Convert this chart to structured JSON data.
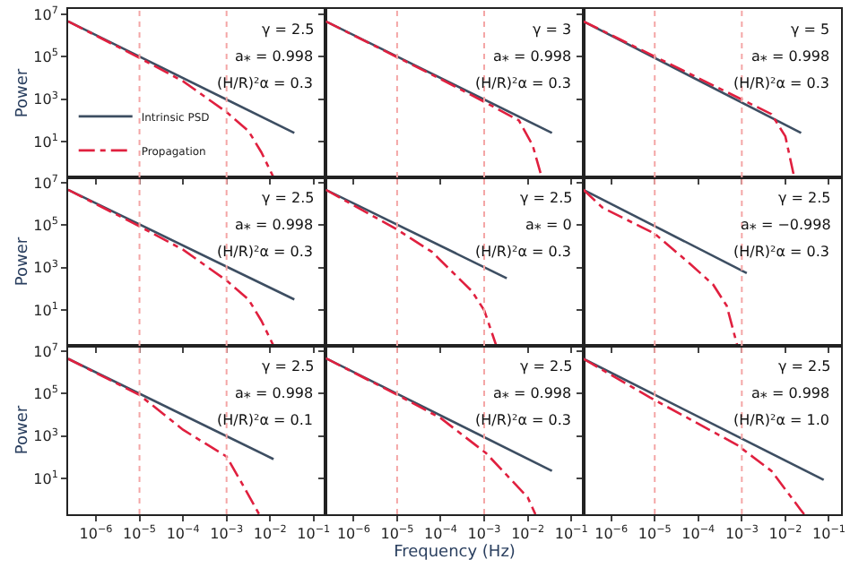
{
  "chart_data": [
    {
      "type": "line",
      "ylabel": "Power",
      "log": "xy",
      "tick_labels": "y",
      "legend": "bottom left",
      "xlim": [
        2.3e-07,
        0.19
      ],
      "ylim": [
        0.21,
        18000000.0
      ],
      "xticks": [
        {
          "value": 1e-06,
          "label": "10$^{−6}$"
        },
        {
          "value": 1e-05,
          "label": "10$^{−5}$"
        },
        {
          "value": 0.0001,
          "label": "10$^{−4}$"
        },
        {
          "value": 0.001,
          "label": "10$^{−3}$"
        },
        {
          "value": 0.01,
          "label": "10$^{−2}$"
        },
        {
          "value": 0.1,
          "label": "10$^{−1}$"
        }
      ],
      "yticks": [
        {
          "value": 10,
          "label": "10$^{1}$"
        },
        {
          "value": 1000,
          "label": "10$^{3}$"
        },
        {
          "value": 100000,
          "label": "10$^{5}$"
        },
        {
          "value": 10000000,
          "label": "10$^{7}$"
        }
      ],
      "ref_lines": [
        {
          "axis": "x",
          "value": 1e-05,
          "color": "#f4a6a6",
          "line_style": "dotted"
        },
        {
          "axis": "x",
          "value": 0.001,
          "color": "#f4a6a6",
          "line_style": "dotted"
        }
      ],
      "annotations": [
        "γ = 2.5",
        "a⁎ = 0.998",
        "(H/R)²α = 0.3"
      ],
      "series": [
        {
          "name": "Intrinsic PSD",
          "color": "#3d4e62",
          "line_style": "solid",
          "x": [
            2.3e-07,
            0.036
          ],
          "values": [
            4700000.0,
            26
          ]
        },
        {
          "name": "Propagation",
          "color": "#e0203f",
          "line_style": "dashdot",
          "x": [
            2.3e-07,
            1e-05,
            0.0001,
            0.001,
            0.0032,
            0.0063,
            0.012
          ],
          "values": [
            4700000.0,
            89000.0,
            7100.0,
            250,
            32,
            3.2,
            0.21
          ]
        }
      ]
    },
    {
      "type": "line",
      "log": "xy",
      "tick_labels": false,
      "xlim": [
        2.3e-07,
        0.19
      ],
      "ylim": [
        0.21,
        18000000.0
      ],
      "xticks": [
        {
          "value": 1e-06,
          "label": "10$^{−6}$"
        },
        {
          "value": 1e-05,
          "label": "10$^{−5}$"
        },
        {
          "value": 0.0001,
          "label": "10$^{−4}$"
        },
        {
          "value": 0.001,
          "label": "10$^{−3}$"
        },
        {
          "value": 0.01,
          "label": "10$^{−2}$"
        },
        {
          "value": 0.1,
          "label": "10$^{−1}$"
        }
      ],
      "yticks": [
        {
          "value": 10,
          "label": "10$^{1}$"
        },
        {
          "value": 1000,
          "label": "10$^{3}$"
        },
        {
          "value": 100000,
          "label": "10$^{5}$"
        },
        {
          "value": 10000000,
          "label": "10$^{7}$"
        }
      ],
      "ref_lines": [
        {
          "axis": "x",
          "value": 1e-05,
          "color": "#f4a6a6",
          "line_style": "dotted"
        },
        {
          "axis": "x",
          "value": 0.001,
          "color": "#f4a6a6",
          "line_style": "dotted"
        }
      ],
      "annotations": [
        "γ = 3",
        "a⁎ = 0.998",
        "(H/R)²α = 0.3"
      ],
      "series": [
        {
          "color": "#3d4e62",
          "line_style": "solid",
          "x": [
            2.3e-07,
            0.036
          ],
          "values": [
            4700000.0,
            26
          ]
        },
        {
          "color": "#e0203f",
          "line_style": "dashdot",
          "x": [
            2.3e-07,
            0.0001,
            0.0012,
            0.0063,
            0.013,
            0.021
          ],
          "values": [
            4700000.0,
            9000,
            630,
            100,
            6.8,
            0.21
          ]
        }
      ]
    },
    {
      "type": "line",
      "log": "xy",
      "tick_labels": false,
      "xlim": [
        2.3e-07,
        0.19
      ],
      "ylim": [
        0.21,
        18000000.0
      ],
      "xticks": [
        {
          "value": 1e-06,
          "label": "10$^{−6}$"
        },
        {
          "value": 1e-05,
          "label": "10$^{−5}$"
        },
        {
          "value": 0.0001,
          "label": "10$^{−4}$"
        },
        {
          "value": 0.001,
          "label": "10$^{−3}$"
        },
        {
          "value": 0.01,
          "label": "10$^{−2}$"
        },
        {
          "value": 0.1,
          "label": "10$^{−1}$"
        }
      ],
      "yticks": [
        {
          "value": 10,
          "label": "10$^{1}$"
        },
        {
          "value": 1000,
          "label": "10$^{3}$"
        },
        {
          "value": 100000,
          "label": "10$^{5}$"
        },
        {
          "value": 10000000,
          "label": "10$^{7}$"
        }
      ],
      "ref_lines": [
        {
          "axis": "x",
          "value": 1e-05,
          "color": "#f4a6a6",
          "line_style": "dotted"
        },
        {
          "axis": "x",
          "value": 0.001,
          "color": "#f4a6a6",
          "line_style": "dotted"
        }
      ],
      "annotations": [
        "γ = 5",
        "a⁎ = 0.998",
        "(H/R)²α = 0.3"
      ],
      "series": [
        {
          "color": "#3d4e62",
          "line_style": "solid",
          "x": [
            2.3e-07,
            0.023
          ],
          "values": [
            4700000.0,
            26
          ]
        },
        {
          "color": "#e0203f",
          "line_style": "dashdot",
          "x": [
            2.3e-07,
            0.0048,
            0.01,
            0.016
          ],
          "values": [
            4700000.0,
            200,
            18,
            0.21
          ]
        }
      ]
    },
    {
      "type": "line",
      "ylabel": "Power",
      "log": "xy",
      "tick_labels": "y",
      "xlim": [
        2.3e-07,
        0.19
      ],
      "ylim": [
        0.21,
        18000000.0
      ],
      "xticks": [
        {
          "value": 1e-06,
          "label": "10$^{−6}$"
        },
        {
          "value": 1e-05,
          "label": "10$^{−5}$"
        },
        {
          "value": 0.0001,
          "label": "10$^{−4}$"
        },
        {
          "value": 0.001,
          "label": "10$^{−3}$"
        },
        {
          "value": 0.01,
          "label": "10$^{−2}$"
        },
        {
          "value": 0.1,
          "label": "10$^{−1}$"
        }
      ],
      "yticks": [
        {
          "value": 10,
          "label": "10$^{1}$"
        },
        {
          "value": 1000,
          "label": "10$^{3}$"
        },
        {
          "value": 100000,
          "label": "10$^{5}$"
        },
        {
          "value": 10000000,
          "label": "10$^{7}$"
        }
      ],
      "ref_lines": [
        {
          "axis": "x",
          "value": 1e-05,
          "color": "#f4a6a6",
          "line_style": "dotted"
        },
        {
          "axis": "x",
          "value": 0.001,
          "color": "#f4a6a6",
          "line_style": "dotted"
        }
      ],
      "annotations": [
        "γ = 2.5",
        "a⁎ = 0.998",
        "(H/R)²α = 0.3"
      ],
      "series": [
        {
          "color": "#3d4e62",
          "line_style": "solid",
          "x": [
            2.3e-07,
            0.036
          ],
          "values": [
            4700000.0,
            32
          ]
        },
        {
          "color": "#e0203f",
          "line_style": "dashdot",
          "x": [
            2.3e-07,
            1e-05,
            0.0001,
            0.001,
            0.0032,
            0.0063,
            0.012
          ],
          "values": [
            4700000.0,
            89000.0,
            7100.0,
            250,
            32,
            3.2,
            0.21
          ]
        }
      ]
    },
    {
      "type": "line",
      "log": "xy",
      "tick_labels": false,
      "xlim": [
        2.3e-07,
        0.19
      ],
      "ylim": [
        0.21,
        18000000.0
      ],
      "xticks": [
        {
          "value": 1e-06,
          "label": "10$^{−6}$"
        },
        {
          "value": 1e-05,
          "label": "10$^{−5}$"
        },
        {
          "value": 0.0001,
          "label": "10$^{−4}$"
        },
        {
          "value": 0.001,
          "label": "10$^{−3}$"
        },
        {
          "value": 0.01,
          "label": "10$^{−2}$"
        },
        {
          "value": 0.1,
          "label": "10$^{−1}$"
        }
      ],
      "yticks": [
        {
          "value": 10,
          "label": "10$^{1}$"
        },
        {
          "value": 1000,
          "label": "10$^{3}$"
        },
        {
          "value": 100000,
          "label": "10$^{5}$"
        },
        {
          "value": 10000000,
          "label": "10$^{7}$"
        }
      ],
      "ref_lines": [
        {
          "axis": "x",
          "value": 1e-05,
          "color": "#f4a6a6",
          "line_style": "dotted"
        },
        {
          "axis": "x",
          "value": 0.001,
          "color": "#f4a6a6",
          "line_style": "dotted"
        }
      ],
      "annotations": [
        "γ = 2.5",
        "a⁎ = 0",
        "(H/R)²α = 0.3"
      ],
      "series": [
        {
          "color": "#3d4e62",
          "line_style": "solid",
          "x": [
            2.3e-07,
            0.0033
          ],
          "values": [
            4700000.0,
            320
          ]
        },
        {
          "color": "#e0203f",
          "line_style": "dashdot",
          "x": [
            2.3e-07,
            1e-05,
            6.3e-05,
            0.00052,
            0.001,
            0.0019
          ],
          "values": [
            4700000.0,
            63000.0,
            5600,
            79,
            10,
            0.21
          ]
        }
      ]
    },
    {
      "type": "line",
      "log": "xy",
      "tick_labels": false,
      "xlim": [
        2.3e-07,
        0.19
      ],
      "ylim": [
        0.21,
        18000000.0
      ],
      "xticks": [
        {
          "value": 1e-06,
          "label": "10$^{−6}$"
        },
        {
          "value": 1e-05,
          "label": "10$^{−5}$"
        },
        {
          "value": 0.0001,
          "label": "10$^{−4}$"
        },
        {
          "value": 0.001,
          "label": "10$^{−3}$"
        },
        {
          "value": 0.01,
          "label": "10$^{−2}$"
        },
        {
          "value": 0.1,
          "label": "10$^{−1}$"
        }
      ],
      "yticks": [
        {
          "value": 10,
          "label": "10$^{1}$"
        },
        {
          "value": 1000,
          "label": "10$^{3}$"
        },
        {
          "value": 100000,
          "label": "10$^{5}$"
        },
        {
          "value": 10000000,
          "label": "10$^{7}$"
        }
      ],
      "ref_lines": [
        {
          "axis": "x",
          "value": 1e-05,
          "color": "#f4a6a6",
          "line_style": "dotted"
        },
        {
          "axis": "x",
          "value": 0.001,
          "color": "#f4a6a6",
          "line_style": "dotted"
        }
      ],
      "annotations": [
        "γ = 2.5",
        "a⁎ = −0.998",
        "(H/R)²α = 0.3"
      ],
      "series": [
        {
          "color": "#3d4e62",
          "line_style": "solid",
          "x": [
            2.3e-07,
            0.0013
          ],
          "values": [
            4700000.0,
            560
          ]
        },
        {
          "color": "#e0203f",
          "line_style": "dashdot",
          "x": [
            2.3e-07,
            6.3e-07,
            1e-05,
            6.3e-05,
            0.00022,
            0.00045,
            0.00079
          ],
          "values": [
            4700000.0,
            680000.0,
            40000.0,
            1600,
            160,
            16,
            0.21
          ]
        }
      ]
    },
    {
      "type": "line",
      "ylabel": "Power",
      "log": "xy",
      "xlim": [
        2.3e-07,
        0.19
      ],
      "ylim": [
        0.21,
        18000000.0
      ],
      "xticks": [
        {
          "value": 1e-06,
          "label": "10$^{−6}$"
        },
        {
          "value": 1e-05,
          "label": "10$^{−5}$"
        },
        {
          "value": 0.0001,
          "label": "10$^{−4}$"
        },
        {
          "value": 0.001,
          "label": "10$^{−3}$"
        },
        {
          "value": 0.01,
          "label": "10$^{−2}$"
        },
        {
          "value": 0.1,
          "label": "10$^{−1}$"
        }
      ],
      "yticks": [
        {
          "value": 10,
          "label": "10$^{1}$"
        },
        {
          "value": 1000,
          "label": "10$^{3}$"
        },
        {
          "value": 100000,
          "label": "10$^{5}$"
        },
        {
          "value": 10000000,
          "label": "10$^{7}$"
        }
      ],
      "ref_lines": [
        {
          "axis": "x",
          "value": 1e-05,
          "color": "#f4a6a6",
          "line_style": "dotted"
        },
        {
          "axis": "x",
          "value": 0.001,
          "color": "#f4a6a6",
          "line_style": "dotted"
        }
      ],
      "annotations": [
        "γ = 2.5",
        "a⁎ = 0.998",
        "(H/R)²α = 0.1"
      ],
      "series": [
        {
          "color": "#3d4e62",
          "line_style": "solid",
          "x": [
            2.3e-07,
            0.012
          ],
          "values": [
            4400000.0,
            83
          ]
        },
        {
          "color": "#e0203f",
          "line_style": "dashdot",
          "x": [
            2.3e-07,
            1e-05,
            0.0001,
            0.001,
            0.0022,
            0.0056
          ],
          "values": [
            4400000.0,
            87000.0,
            2000,
            110,
            6.5,
            0.21
          ]
        }
      ]
    },
    {
      "type": "line",
      "xlabel": "Frequency (Hz)",
      "log": "xy",
      "tick_labels": "x",
      "xlim": [
        2.3e-07,
        0.19
      ],
      "ylim": [
        0.21,
        18000000.0
      ],
      "xticks": [
        {
          "value": 1e-06,
          "label": "10$^{−6}$"
        },
        {
          "value": 1e-05,
          "label": "10$^{−5}$"
        },
        {
          "value": 0.0001,
          "label": "10$^{−4}$"
        },
        {
          "value": 0.001,
          "label": "10$^{−3}$"
        },
        {
          "value": 0.01,
          "label": "10$^{−2}$"
        },
        {
          "value": 0.1,
          "label": "10$^{−1}$"
        }
      ],
      "yticks": [
        {
          "value": 10,
          "label": "10$^{1}$"
        },
        {
          "value": 1000,
          "label": "10$^{3}$"
        },
        {
          "value": 100000,
          "label": "10$^{5}$"
        },
        {
          "value": 10000000,
          "label": "10$^{7}$"
        }
      ],
      "ref_lines": [
        {
          "axis": "x",
          "value": 1e-05,
          "color": "#f4a6a6",
          "line_style": "dotted"
        },
        {
          "axis": "x",
          "value": 0.001,
          "color": "#f4a6a6",
          "line_style": "dotted"
        }
      ],
      "annotations": [
        "γ = 2.5",
        "a⁎ = 0.998",
        "(H/R)²α = 0.3"
      ],
      "series": [
        {
          "color": "#3d4e62",
          "line_style": "solid",
          "x": [
            2.3e-07,
            0.036
          ],
          "values": [
            4700000.0,
            23
          ]
        },
        {
          "color": "#e0203f",
          "line_style": "dashdot",
          "x": [
            2.3e-07,
            1e-05,
            0.0001,
            0.0011,
            0.01,
            0.015
          ],
          "values": [
            4700000.0,
            89000.0,
            7100.0,
            160,
            1.3,
            0.21
          ]
        }
      ]
    },
    {
      "type": "line",
      "log": "xy",
      "tick_labels": "x",
      "xlim": [
        2.3e-07,
        0.19
      ],
      "ylim": [
        0.21,
        18000000.0
      ],
      "xticks": [
        {
          "value": 1e-06,
          "label": "10$^{−6}$"
        },
        {
          "value": 1e-05,
          "label": "10$^{−5}$"
        },
        {
          "value": 0.0001,
          "label": "10$^{−4}$"
        },
        {
          "value": 0.001,
          "label": "10$^{−3}$"
        },
        {
          "value": 0.01,
          "label": "10$^{−2}$"
        },
        {
          "value": 0.1,
          "label": "10$^{−1}$"
        }
      ],
      "yticks": [
        {
          "value": 10,
          "label": "10$^{1}$"
        },
        {
          "value": 1000,
          "label": "10$^{3}$"
        },
        {
          "value": 100000,
          "label": "10$^{5}$"
        },
        {
          "value": 10000000,
          "label": "10$^{7}$"
        }
      ],
      "ref_lines": [
        {
          "axis": "x",
          "value": 1e-05,
          "color": "#f4a6a6",
          "line_style": "dotted"
        },
        {
          "axis": "x",
          "value": 0.001,
          "color": "#f4a6a6",
          "line_style": "dotted"
        }
      ],
      "annotations": [
        "γ = 2.5",
        "a⁎ = 0.998",
        "(H/R)²α = 1.0"
      ],
      "series": [
        {
          "color": "#3d4e62",
          "line_style": "solid",
          "x": [
            2.3e-07,
            0.076
          ],
          "values": [
            4400000.0,
            8.7
          ]
        },
        {
          "color": "#e0203f",
          "line_style": "dashdot",
          "x": [
            2.3e-07,
            7.6e-06,
            0.00076,
            0.0048,
            0.022,
            0.027
          ],
          "values": [
            4400000.0,
            68000.0,
            400,
            23,
            0.36,
            0.21
          ]
        }
      ]
    }
  ]
}
